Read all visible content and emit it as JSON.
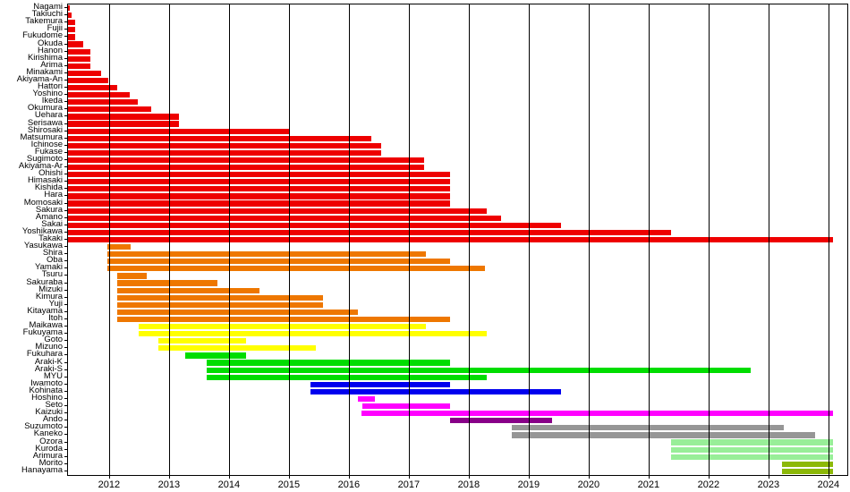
{
  "chart_data": {
    "type": "bar",
    "orientation": "horizontal",
    "title": "",
    "xlabel": "",
    "ylabel": "",
    "grid": true,
    "legend": false,
    "x_axis": {
      "min": 2011.3,
      "max": 2024.3,
      "tick_labels": [
        "2012",
        "2013",
        "2014",
        "2015",
        "2016",
        "2017",
        "2018",
        "2019",
        "2020",
        "2021",
        "2022",
        "2023",
        "2024"
      ],
      "ticks": [
        2012,
        2013,
        2014,
        2015,
        2016,
        2017,
        2018,
        2019,
        2020,
        2021,
        2022,
        2023,
        2024
      ]
    },
    "colors": {
      "red": "#EE0000",
      "orange": "#EE7700",
      "yellow": "#FFFF00",
      "green": "#00DD00",
      "blue": "#0000EE",
      "magenta": "#FF00FF",
      "purple": "#880088",
      "gray": "#969696",
      "lightgreen": "#98EE98",
      "olive": "#8CB808"
    },
    "bars": [
      {
        "label": "Nagami",
        "group": "red",
        "start": 2011.3,
        "end": 2011.33
      },
      {
        "label": "Takiuchi",
        "group": "red",
        "start": 2011.3,
        "end": 2011.36
      },
      {
        "label": "Takemura",
        "group": "red",
        "start": 2011.3,
        "end": 2011.42
      },
      {
        "label": "Fujii",
        "group": "red",
        "start": 2011.3,
        "end": 2011.42
      },
      {
        "label": "Fukudome",
        "group": "red",
        "start": 2011.3,
        "end": 2011.42
      },
      {
        "label": "Okuda",
        "group": "red",
        "start": 2011.3,
        "end": 2011.56
      },
      {
        "label": "Hanon",
        "group": "red",
        "start": 2011.3,
        "end": 2011.67
      },
      {
        "label": "Kirishima",
        "group": "red",
        "start": 2011.3,
        "end": 2011.67
      },
      {
        "label": "Arima",
        "group": "red",
        "start": 2011.3,
        "end": 2011.67
      },
      {
        "label": "Minakami",
        "group": "red",
        "start": 2011.3,
        "end": 2011.85
      },
      {
        "label": "Akiyama-An",
        "group": "red",
        "start": 2011.3,
        "end": 2011.97
      },
      {
        "label": "Hattori",
        "group": "red",
        "start": 2011.3,
        "end": 2012.12
      },
      {
        "label": "Yoshino",
        "group": "red",
        "start": 2011.3,
        "end": 2012.33
      },
      {
        "label": "Ikeda",
        "group": "red",
        "start": 2011.3,
        "end": 2012.47
      },
      {
        "label": "Okumura",
        "group": "red",
        "start": 2011.3,
        "end": 2012.69
      },
      {
        "label": "Uehara",
        "group": "red",
        "start": 2011.3,
        "end": 2013.15
      },
      {
        "label": "Serisawa",
        "group": "red",
        "start": 2011.3,
        "end": 2013.15
      },
      {
        "label": "Shirosaki",
        "group": "red",
        "start": 2011.3,
        "end": 2015.0
      },
      {
        "label": "Matsumura",
        "group": "red",
        "start": 2011.3,
        "end": 2016.36
      },
      {
        "label": "Ichinose",
        "group": "red",
        "start": 2011.3,
        "end": 2016.52
      },
      {
        "label": "Fukase",
        "group": "red",
        "start": 2011.3,
        "end": 2016.52
      },
      {
        "label": "Sugimoto",
        "group": "red",
        "start": 2011.3,
        "end": 2017.24
      },
      {
        "label": "Akiyama-Ar",
        "group": "red",
        "start": 2011.3,
        "end": 2017.24
      },
      {
        "label": "Ohishi",
        "group": "red",
        "start": 2011.3,
        "end": 2017.67
      },
      {
        "label": "Himasaki",
        "group": "red",
        "start": 2011.3,
        "end": 2017.67
      },
      {
        "label": "Kishida",
        "group": "red",
        "start": 2011.3,
        "end": 2017.67
      },
      {
        "label": "Hara",
        "group": "red",
        "start": 2011.3,
        "end": 2017.67
      },
      {
        "label": "Momosaki",
        "group": "red",
        "start": 2011.3,
        "end": 2017.67
      },
      {
        "label": "Sakura",
        "group": "red",
        "start": 2011.3,
        "end": 2018.28
      },
      {
        "label": "Amano",
        "group": "red",
        "start": 2011.3,
        "end": 2018.53
      },
      {
        "label": "Sakai",
        "group": "red",
        "start": 2011.3,
        "end": 2019.53
      },
      {
        "label": "Yoshikawa",
        "group": "red",
        "start": 2011.3,
        "end": 2021.36
      },
      {
        "label": "Takaki",
        "group": "red",
        "start": 2011.3,
        "end": 2024.06
      },
      {
        "label": "Yasukawa",
        "group": "orange",
        "start": 2011.96,
        "end": 2012.34
      },
      {
        "label": "Shira",
        "group": "orange",
        "start": 2011.96,
        "end": 2017.27
      },
      {
        "label": "Oba",
        "group": "orange",
        "start": 2011.96,
        "end": 2017.67
      },
      {
        "label": "Yamaki",
        "group": "orange",
        "start": 2011.96,
        "end": 2018.26
      },
      {
        "label": "Tsuru",
        "group": "orange",
        "start": 2012.12,
        "end": 2012.61
      },
      {
        "label": "Sakuraba",
        "group": "orange",
        "start": 2012.12,
        "end": 2013.79
      },
      {
        "label": "Mizuki",
        "group": "orange",
        "start": 2012.12,
        "end": 2014.5
      },
      {
        "label": "Kimura",
        "group": "orange",
        "start": 2012.12,
        "end": 2015.55
      },
      {
        "label": "Yuji",
        "group": "orange",
        "start": 2012.12,
        "end": 2015.55
      },
      {
        "label": "Kitayama",
        "group": "orange",
        "start": 2012.12,
        "end": 2016.14
      },
      {
        "label": "Itoh",
        "group": "orange",
        "start": 2012.12,
        "end": 2017.67
      },
      {
        "label": "Maikawa",
        "group": "yellow",
        "start": 2012.48,
        "end": 2017.27
      },
      {
        "label": "Fukuyama",
        "group": "yellow",
        "start": 2012.48,
        "end": 2018.28
      },
      {
        "label": "Goto",
        "group": "yellow",
        "start": 2012.81,
        "end": 2014.27
      },
      {
        "label": "Mizuno",
        "group": "yellow",
        "start": 2012.81,
        "end": 2015.43
      },
      {
        "label": "Fukuhara",
        "group": "green",
        "start": 2013.26,
        "end": 2014.27
      },
      {
        "label": "Araki-K",
        "group": "green",
        "start": 2013.61,
        "end": 2017.67
      },
      {
        "label": "Araki-S",
        "group": "green",
        "start": 2013.61,
        "end": 2022.69
      },
      {
        "label": "MYU",
        "group": "green",
        "start": 2013.61,
        "end": 2018.28
      },
      {
        "label": "Iwamoto",
        "group": "blue",
        "start": 2015.35,
        "end": 2017.67
      },
      {
        "label": "Kohinata",
        "group": "blue",
        "start": 2015.35,
        "end": 2019.53
      },
      {
        "label": "Hoshino",
        "group": "magenta",
        "start": 2016.14,
        "end": 2016.42
      },
      {
        "label": "Seto",
        "group": "magenta",
        "start": 2016.21,
        "end": 2017.67
      },
      {
        "label": "Kaizuki",
        "group": "magenta",
        "start": 2016.2,
        "end": 2024.06
      },
      {
        "label": "Ando",
        "group": "purple",
        "start": 2017.67,
        "end": 2019.38
      },
      {
        "label": "Suzumoto",
        "group": "gray",
        "start": 2018.71,
        "end": 2023.24
      },
      {
        "label": "Kaneko",
        "group": "gray",
        "start": 2018.71,
        "end": 2023.77
      },
      {
        "label": "Ozora",
        "group": "lightgreen",
        "start": 2021.36,
        "end": 2024.06
      },
      {
        "label": "Kuroda",
        "group": "lightgreen",
        "start": 2021.36,
        "end": 2024.06
      },
      {
        "label": "Arimura",
        "group": "lightgreen",
        "start": 2021.36,
        "end": 2024.06
      },
      {
        "label": "Morito",
        "group": "olive",
        "start": 2023.21,
        "end": 2024.06
      },
      {
        "label": "Hanayama",
        "group": "olive",
        "start": 2023.21,
        "end": 2024.06
      }
    ]
  }
}
